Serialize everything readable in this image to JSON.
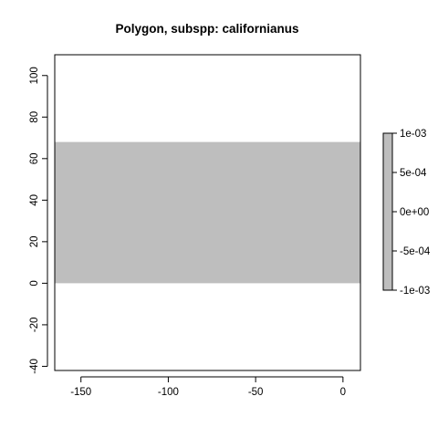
{
  "chart_data": {
    "type": "heatmap",
    "title": "Polygon, subspp: californianus",
    "xlabel": "",
    "ylabel": "",
    "xlim": [
      -165,
      10
    ],
    "ylim": [
      -42,
      110
    ],
    "xticks": [
      -150,
      -100,
      -50,
      0
    ],
    "yticks": [
      -40,
      -20,
      0,
      20,
      40,
      60,
      80,
      100
    ],
    "grid": false,
    "region": {
      "xmin": -165,
      "xmax": 10,
      "ymin": 0,
      "ymax": 68,
      "value": 0,
      "color": "#bebebe"
    },
    "legend": {
      "position": "right",
      "type": "colorbar",
      "min": -0.001,
      "max": 0.001,
      "color": "#bebebe",
      "ticks": [
        {
          "value": 0.001,
          "label": "1e-03"
        },
        {
          "value": 0.0005,
          "label": "5e-04"
        },
        {
          "value": 0,
          "label": "0e+00"
        },
        {
          "value": -0.0005,
          "label": "-5e-04"
        },
        {
          "value": -0.001,
          "label": "-1e-03"
        }
      ]
    }
  },
  "colors": {
    "background": "#ffffff",
    "fill": "#bebebe",
    "axis": "#000000"
  }
}
